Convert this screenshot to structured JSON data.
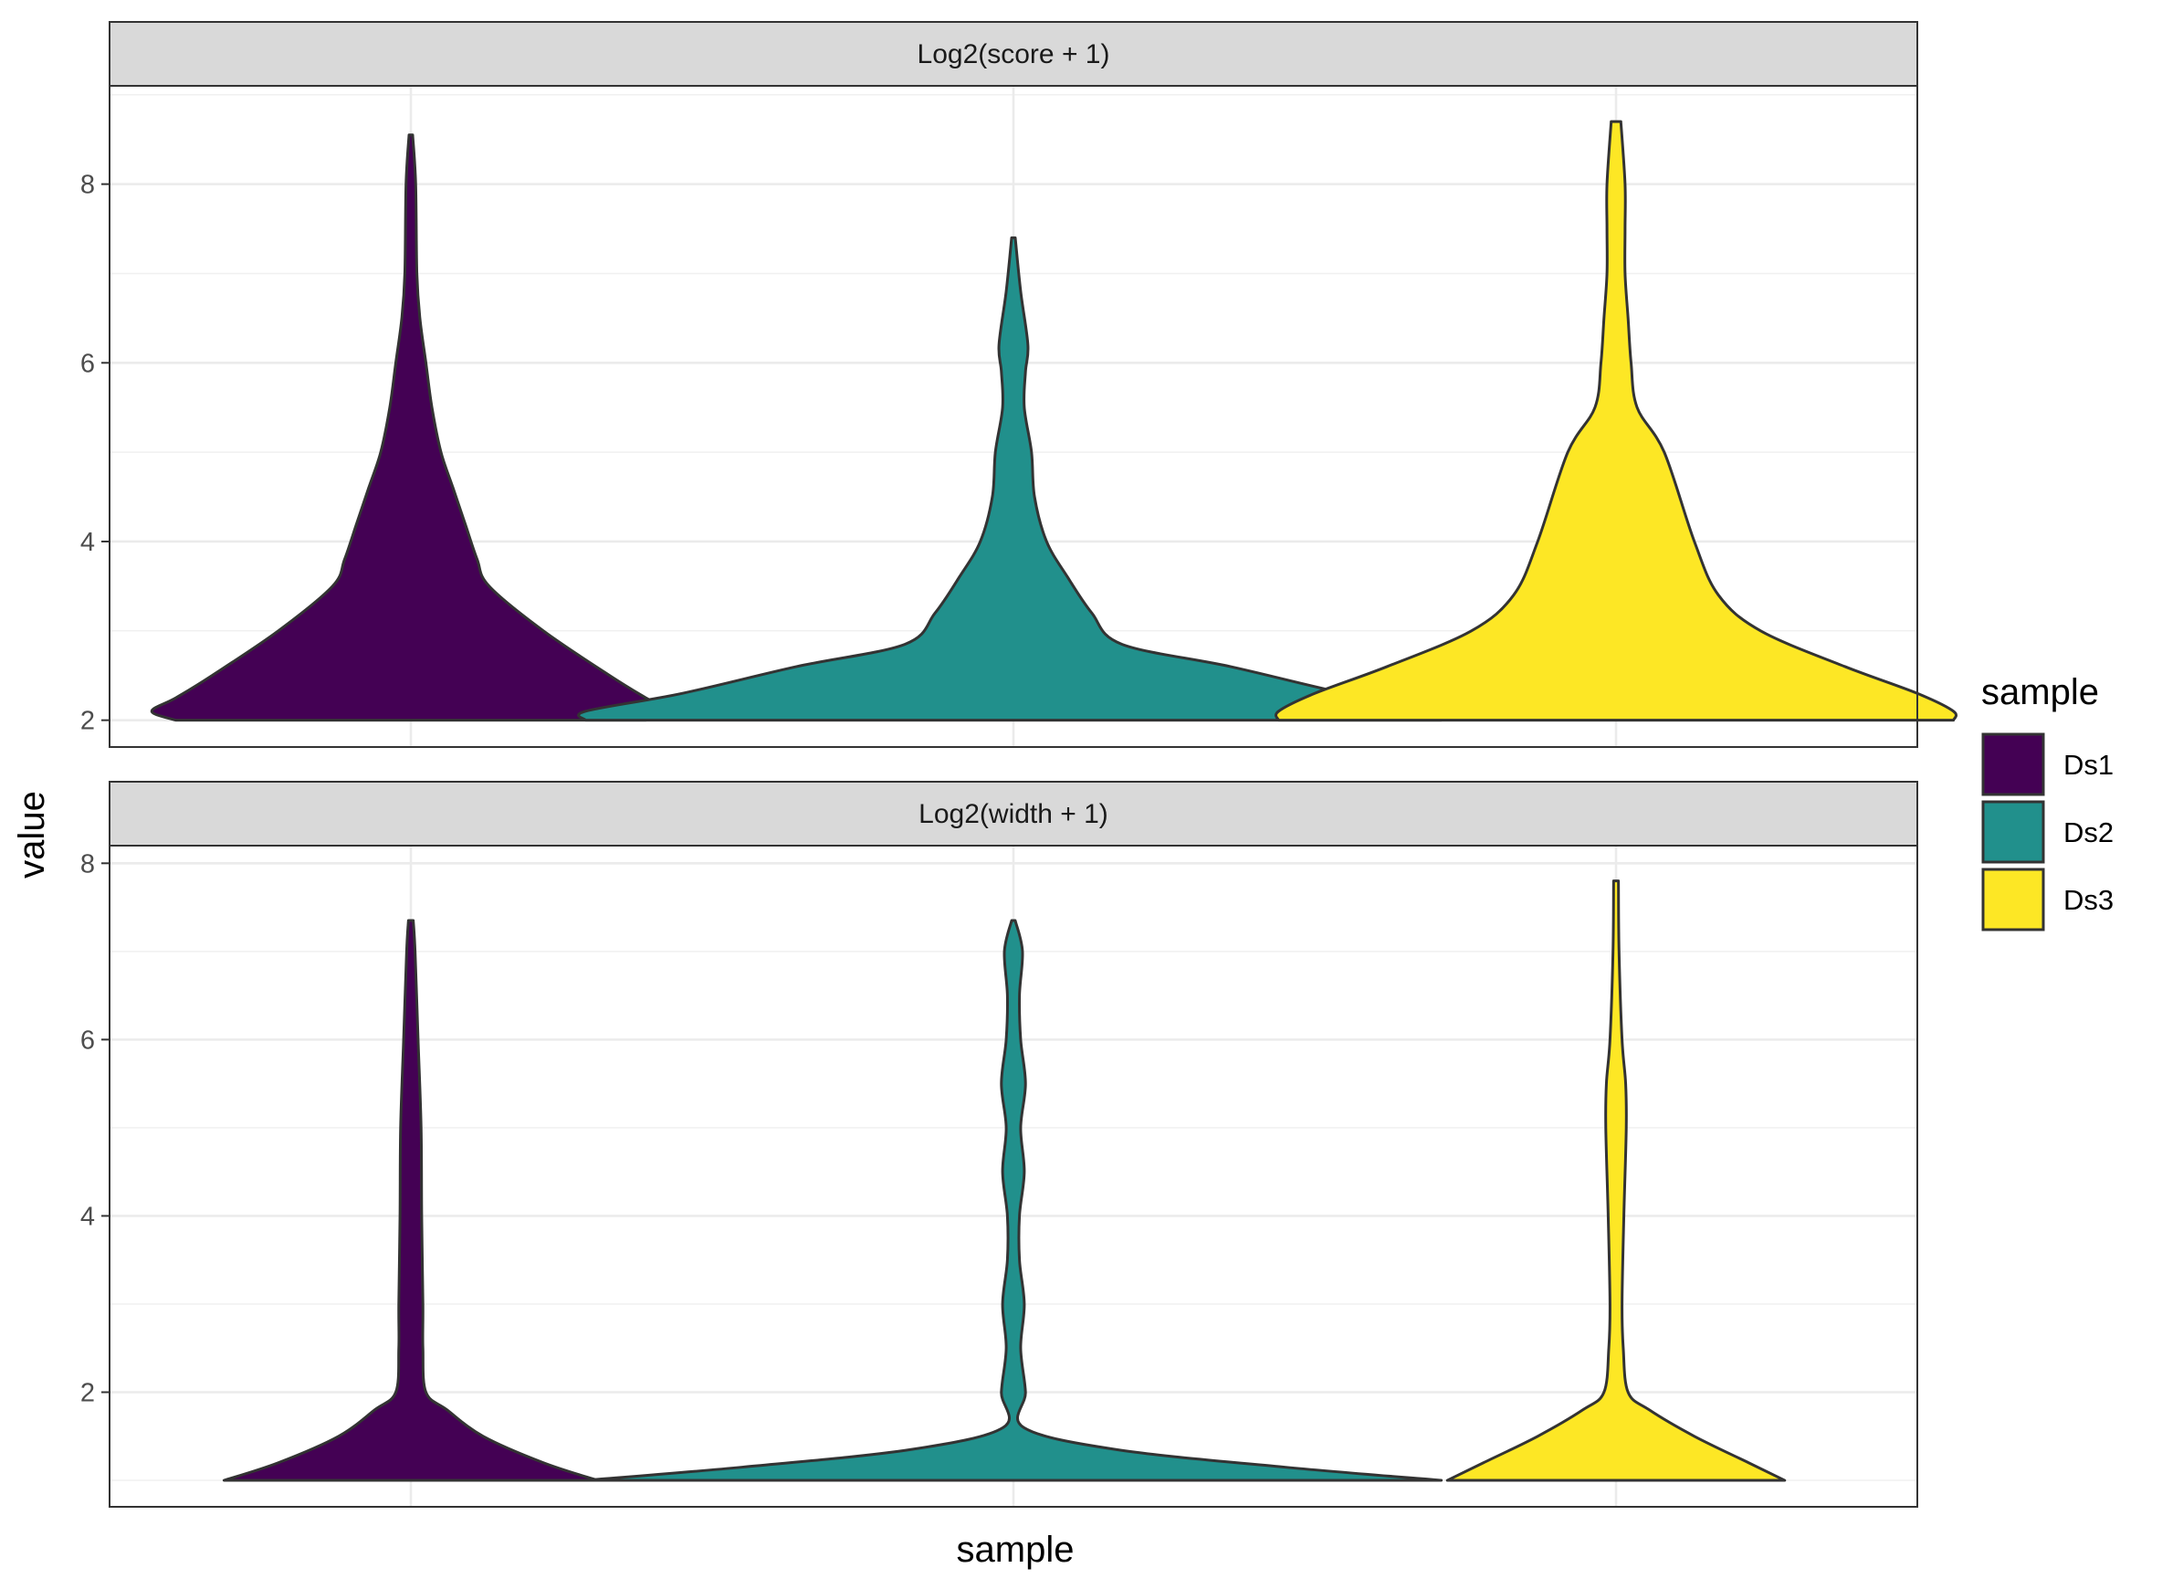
{
  "chart_data": {
    "type": "violin",
    "x_title": "sample",
    "y_title": "value",
    "categories": [
      "Ds1",
      "Ds2",
      "Ds3"
    ],
    "legend": {
      "title": "sample",
      "position": "right",
      "items": [
        {
          "label": "Ds1",
          "color": "#440154"
        },
        {
          "label": "Ds2",
          "color": "#21908C"
        },
        {
          "label": "Ds3",
          "color": "#FDE725"
        }
      ]
    },
    "grid": true,
    "panels": [
      {
        "strip": "Log2(score + 1)",
        "ylim": [
          1.7,
          9.1
        ],
        "yticks": [
          2,
          4,
          6,
          8
        ],
        "violins": [
          {
            "sample": "Ds1",
            "color": "#440154",
            "profile": [
              [
                2.0,
                0.39
              ],
              [
                2.1,
                0.43
              ],
              [
                2.25,
                0.39
              ],
              [
                2.5,
                0.33
              ],
              [
                3.0,
                0.22
              ],
              [
                3.5,
                0.13
              ],
              [
                3.8,
                0.11
              ],
              [
                4.2,
                0.09
              ],
              [
                4.6,
                0.07
              ],
              [
                5.0,
                0.05
              ],
              [
                5.5,
                0.035
              ],
              [
                6.0,
                0.025
              ],
              [
                6.5,
                0.015
              ],
              [
                7.0,
                0.01
              ],
              [
                8.0,
                0.008
              ],
              [
                8.55,
                0.003
              ]
            ]
          },
          {
            "sample": "Ds2",
            "color": "#21908C",
            "profile": [
              [
                2.0,
                0.71
              ],
              [
                2.1,
                0.71
              ],
              [
                2.3,
                0.55
              ],
              [
                2.6,
                0.36
              ],
              [
                2.85,
                0.18
              ],
              [
                3.2,
                0.13
              ],
              [
                3.6,
                0.09
              ],
              [
                4.0,
                0.055
              ],
              [
                4.5,
                0.035
              ],
              [
                5.0,
                0.03
              ],
              [
                5.5,
                0.018
              ],
              [
                5.9,
                0.02
              ],
              [
                6.2,
                0.024
              ],
              [
                6.8,
                0.012
              ],
              [
                7.4,
                0.003
              ]
            ]
          },
          {
            "sample": "Ds3",
            "color": "#FDE725",
            "profile": [
              [
                2.0,
                0.56
              ],
              [
                2.1,
                0.56
              ],
              [
                2.3,
                0.5
              ],
              [
                2.6,
                0.38
              ],
              [
                3.0,
                0.24
              ],
              [
                3.4,
                0.17
              ],
              [
                4.0,
                0.13
              ],
              [
                5.0,
                0.08
              ],
              [
                5.5,
                0.035
              ],
              [
                6.0,
                0.025
              ],
              [
                6.5,
                0.02
              ],
              [
                7.0,
                0.015
              ],
              [
                7.5,
                0.015
              ],
              [
                8.0,
                0.015
              ],
              [
                8.7,
                0.008
              ]
            ]
          }
        ]
      },
      {
        "strip": "Log2(width + 1)",
        "ylim": [
          0.7,
          8.2
        ],
        "yticks": [
          2,
          4,
          6,
          8
        ],
        "violins": [
          {
            "sample": "Ds1",
            "color": "#440154",
            "profile": [
              [
                1.0,
                0.31
              ],
              [
                1.2,
                0.22
              ],
              [
                1.5,
                0.12
              ],
              [
                1.8,
                0.06
              ],
              [
                2.0,
                0.025
              ],
              [
                2.5,
                0.02
              ],
              [
                3.0,
                0.02
              ],
              [
                4.0,
                0.018
              ],
              [
                5.0,
                0.017
              ],
              [
                6.0,
                0.012
              ],
              [
                7.0,
                0.007
              ],
              [
                7.35,
                0.004
              ]
            ]
          },
          {
            "sample": "Ds2",
            "color": "#21908C",
            "profile": [
              [
                1.0,
                0.71
              ],
              [
                1.15,
                0.45
              ],
              [
                1.35,
                0.17
              ],
              [
                1.6,
                0.017
              ],
              [
                2.0,
                0.02
              ],
              [
                2.5,
                0.012
              ],
              [
                3.0,
                0.018
              ],
              [
                3.5,
                0.01
              ],
              [
                4.0,
                0.01
              ],
              [
                4.5,
                0.018
              ],
              [
                5.0,
                0.012
              ],
              [
                5.5,
                0.02
              ],
              [
                6.0,
                0.012
              ],
              [
                6.5,
                0.01
              ],
              [
                7.0,
                0.015
              ],
              [
                7.35,
                0.003
              ]
            ]
          },
          {
            "sample": "Ds3",
            "color": "#FDE725",
            "profile": [
              [
                1.0,
                0.28
              ],
              [
                1.2,
                0.22
              ],
              [
                1.5,
                0.13
              ],
              [
                1.8,
                0.055
              ],
              [
                2.0,
                0.02
              ],
              [
                2.5,
                0.012
              ],
              [
                3.0,
                0.01
              ],
              [
                4.0,
                0.013
              ],
              [
                5.0,
                0.017
              ],
              [
                5.5,
                0.016
              ],
              [
                6.0,
                0.01
              ],
              [
                7.0,
                0.005
              ],
              [
                7.8,
                0.004
              ]
            ]
          }
        ]
      }
    ]
  }
}
